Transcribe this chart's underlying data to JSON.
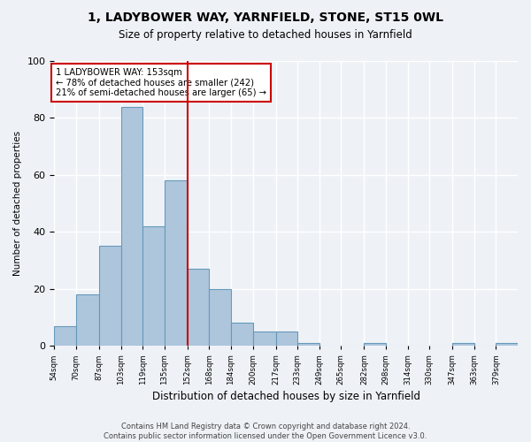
{
  "title": "1, LADYBOWER WAY, YARNFIELD, STONE, ST15 0WL",
  "subtitle": "Size of property relative to detached houses in Yarnfield",
  "xlabel": "Distribution of detached houses by size in Yarnfield",
  "ylabel": "Number of detached properties",
  "bar_edges": [
    54,
    70,
    87,
    103,
    119,
    135,
    152,
    168,
    184,
    200,
    217,
    233,
    249,
    265,
    282,
    298,
    314,
    330,
    347,
    363,
    379,
    395
  ],
  "bar_heights": [
    7,
    18,
    35,
    84,
    42,
    58,
    27,
    20,
    8,
    5,
    5,
    1,
    0,
    0,
    1,
    0,
    0,
    0,
    1,
    0,
    1
  ],
  "bar_color": "#aec6dc",
  "bar_edge_color": "#6699bb",
  "vline_x": 152,
  "vline_color": "#cc0000",
  "annotation_text": "1 LADYBOWER WAY: 153sqm\n← 78% of detached houses are smaller (242)\n21% of semi-detached houses are larger (65) →",
  "annotation_box_color": "#ffffff",
  "annotation_box_edge_color": "#cc0000",
  "ylim": [
    0,
    100
  ],
  "yticks": [
    0,
    20,
    40,
    60,
    80,
    100
  ],
  "background_color": "#eef2f7",
  "grid_color": "#ffffff",
  "footer": "Contains HM Land Registry data © Crown copyright and database right 2024.\nContains public sector information licensed under the Open Government Licence v3.0.",
  "tick_labels": [
    "54sqm",
    "70sqm",
    "87sqm",
    "103sqm",
    "119sqm",
    "135sqm",
    "152sqm",
    "168sqm",
    "184sqm",
    "200sqm",
    "217sqm",
    "233sqm",
    "249sqm",
    "265sqm",
    "282sqm",
    "298sqm",
    "314sqm",
    "330sqm",
    "347sqm",
    "363sqm",
    "379sqm"
  ]
}
